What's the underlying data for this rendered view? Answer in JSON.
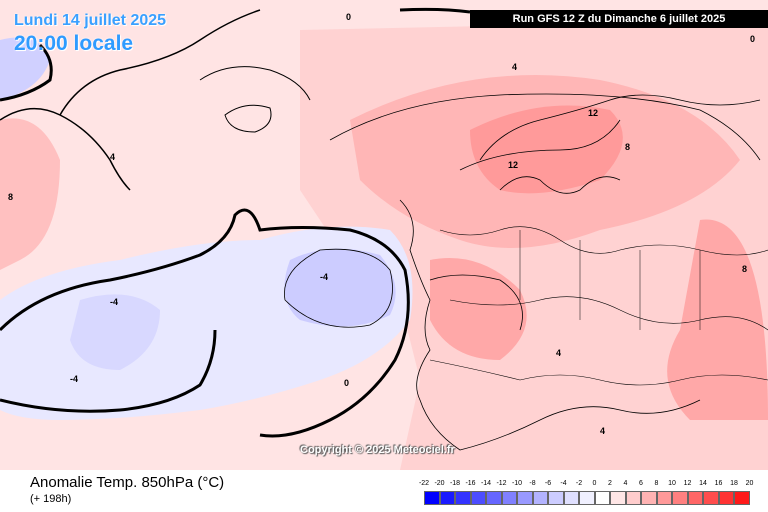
{
  "header": {
    "date": "Lundi 14 juillet 2025",
    "time": "20:00 locale",
    "run": "Run GFS 12 Z du Dimanche 6 juillet 2025"
  },
  "footer": {
    "variable": "Anomalie Temp. 850hPa (°C)",
    "lead": "(+ 198h)"
  },
  "copyright": "Copyright © 2025 Meteociel.fr",
  "legend": {
    "ticks": [
      "-22",
      "-20",
      "-18",
      "-16",
      "-14",
      "-12",
      "-10",
      "-8",
      "-6",
      "-4",
      "-2",
      "0",
      "2",
      "4",
      "6",
      "8",
      "10",
      "12",
      "14",
      "16",
      "18",
      "20"
    ],
    "colors": [
      "#0000ff",
      "#1a1aff",
      "#3333ff",
      "#4d4dff",
      "#6666ff",
      "#8080ff",
      "#9999ff",
      "#b3b3ff",
      "#ccccff",
      "#e0e0ff",
      "#f0f0ff",
      "#ffffff",
      "#ffe6e6",
      "#ffcccc",
      "#ffb3b3",
      "#ff9999",
      "#ff8080",
      "#ff6666",
      "#ff4d4d",
      "#ff3333",
      "#ff1a1a"
    ]
  },
  "map_labels": [
    "0",
    "4",
    "-4",
    "8",
    "12",
    "0",
    "4",
    "-4",
    "8",
    "12",
    "-4",
    "4",
    "0",
    "8",
    "4"
  ]
}
